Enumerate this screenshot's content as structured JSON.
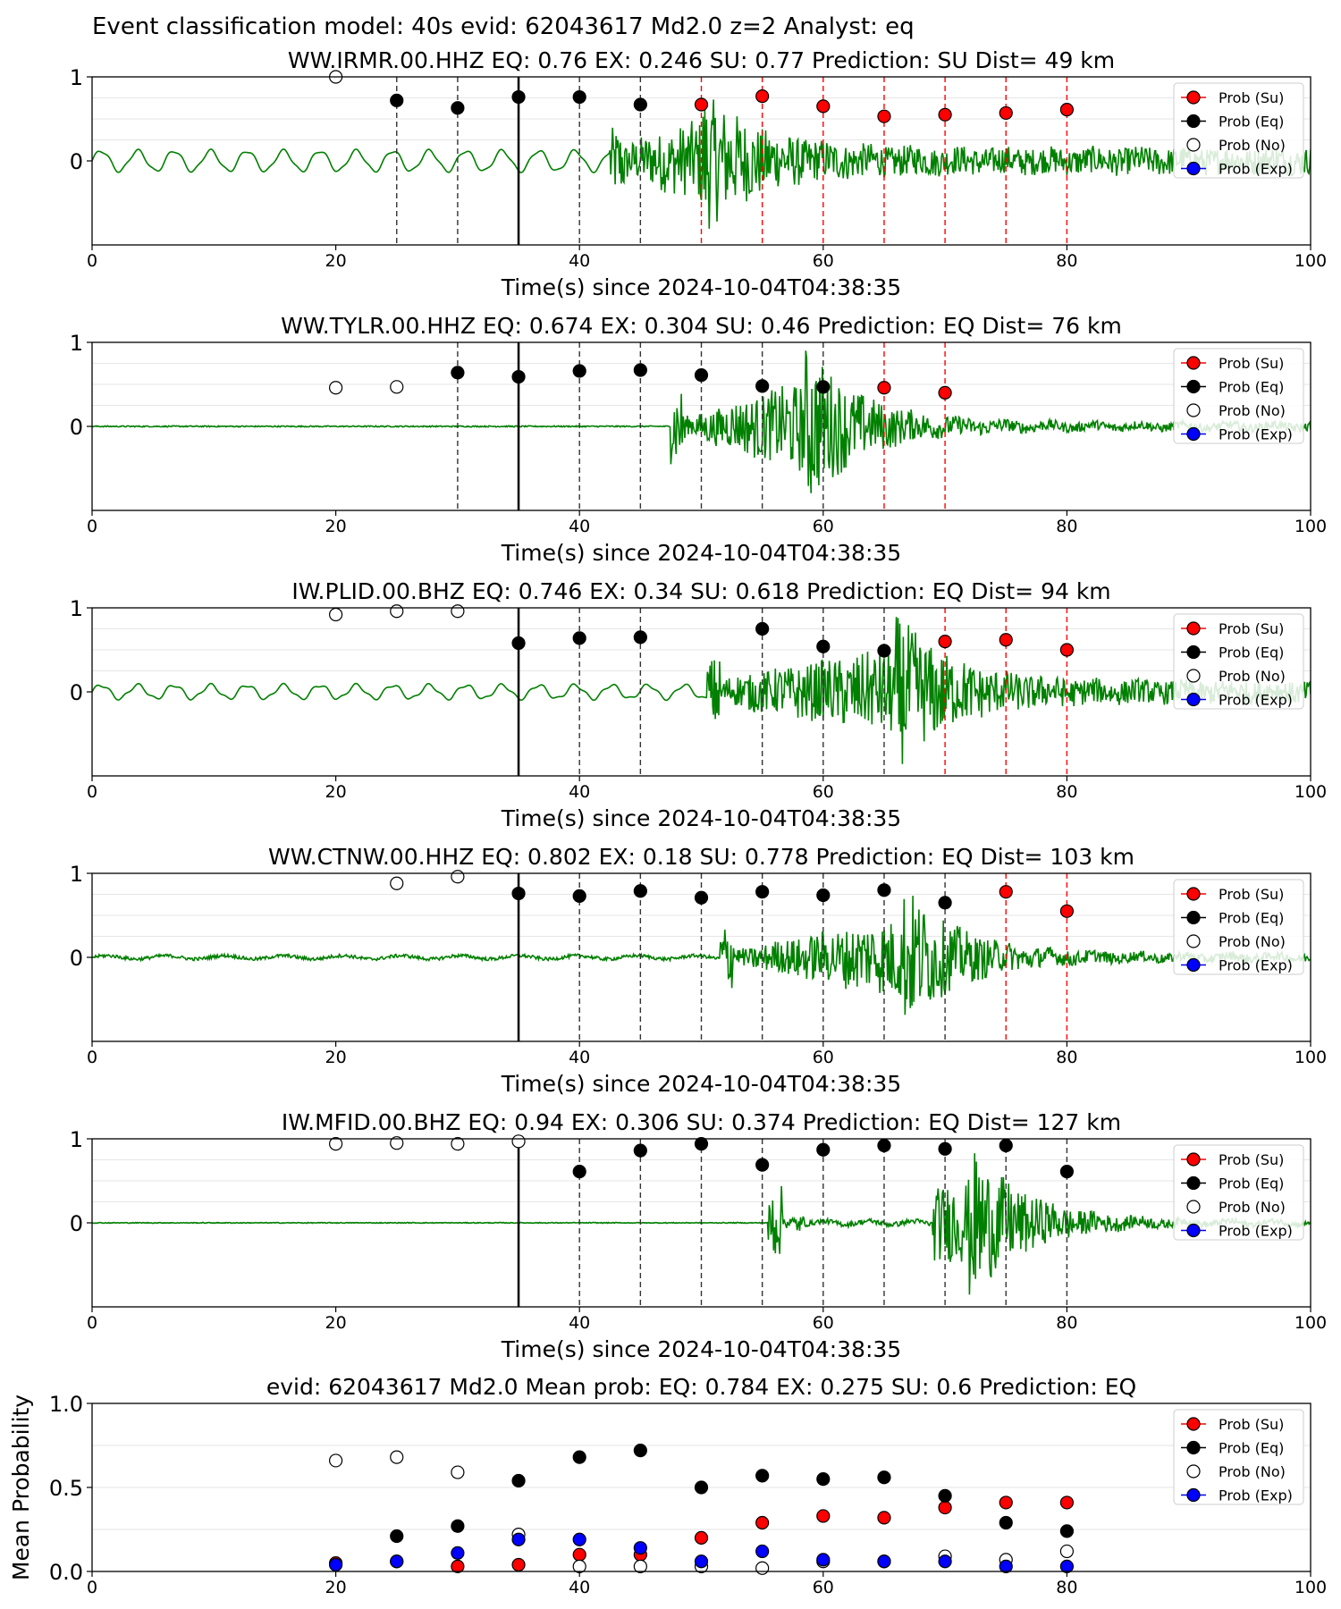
{
  "figure": {
    "suptitle": "Event classification model: 40s evid: 62043617 Md2.0 z=2 Analyst: eq"
  },
  "legend": [
    "Prob (Su)",
    "Prob (Eq)",
    "Prob (No)",
    "Prob (Exp)"
  ],
  "colors": {
    "su": "#ff0000",
    "eq": "#000000",
    "no": "#ffffff",
    "exp": "#0000ff",
    "waveform": "#008000",
    "eq_line": "#000000",
    "su_line": "#ff0000"
  },
  "chart_data": [
    {
      "type": "scatter",
      "title": "WW.IRMR.00.HHZ   EQ: 0.76  EX: 0.246  SU: 0.77   Prediction: SU    Dist= 49 km",
      "xlabel": "Time(s) since 2024-10-04T04:38:35",
      "xlim": [
        0,
        100
      ],
      "xticks": [
        "0",
        "20",
        "40",
        "60",
        "80",
        "100"
      ],
      "yticks": [
        "0",
        "1"
      ],
      "ylim": [
        -1,
        1
      ],
      "grid": true,
      "legend_position": "upper right",
      "reference_time": 35,
      "waveform": {
        "start": 0,
        "end": 100,
        "onset": 42.5,
        "peak": 50,
        "peak_amp": 0.9,
        "pre_amp": 0.12,
        "coda_amp": 0.16,
        "pre_style": "oscillating"
      },
      "vlines": [
        {
          "x": 25,
          "cls": "eq"
        },
        {
          "x": 30,
          "cls": "eq"
        },
        {
          "x": 40,
          "cls": "eq"
        },
        {
          "x": 45,
          "cls": "eq"
        },
        {
          "x": 50,
          "cls": "su"
        },
        {
          "x": 55,
          "cls": "su"
        },
        {
          "x": 60,
          "cls": "su"
        },
        {
          "x": 65,
          "cls": "su"
        },
        {
          "x": 70,
          "cls": "su"
        },
        {
          "x": 75,
          "cls": "su"
        },
        {
          "x": 80,
          "cls": "su"
        }
      ],
      "points": [
        {
          "x": 20,
          "y": 1.0,
          "cls": "no"
        },
        {
          "x": 25,
          "y": 0.72,
          "cls": "eq"
        },
        {
          "x": 30,
          "y": 0.63,
          "cls": "eq"
        },
        {
          "x": 35,
          "y": 0.76,
          "cls": "eq"
        },
        {
          "x": 40,
          "y": 0.76,
          "cls": "eq"
        },
        {
          "x": 45,
          "y": 0.67,
          "cls": "eq"
        },
        {
          "x": 50,
          "y": 0.67,
          "cls": "su"
        },
        {
          "x": 55,
          "y": 0.77,
          "cls": "su"
        },
        {
          "x": 60,
          "y": 0.65,
          "cls": "su"
        },
        {
          "x": 65,
          "y": 0.53,
          "cls": "su"
        },
        {
          "x": 70,
          "y": 0.55,
          "cls": "su"
        },
        {
          "x": 75,
          "y": 0.57,
          "cls": "su"
        },
        {
          "x": 80,
          "y": 0.61,
          "cls": "su"
        }
      ]
    },
    {
      "type": "scatter",
      "title": "WW.TYLR.00.HHZ   EQ: 0.674  EX: 0.304  SU: 0.46   Prediction: EQ    Dist= 76 km",
      "xlabel": "Time(s) since 2024-10-04T04:38:35",
      "xlim": [
        0,
        100
      ],
      "xticks": [
        "0",
        "20",
        "40",
        "60",
        "80",
        "100"
      ],
      "yticks": [
        "0",
        "1"
      ],
      "ylim": [
        -1,
        1
      ],
      "grid": true,
      "legend_position": "upper right",
      "reference_time": 35,
      "waveform": {
        "start": 0,
        "end": 100,
        "onset": 47.5,
        "peak": 58.5,
        "peak_amp": 1.0,
        "pre_amp": 0.015,
        "coda_amp": 0.05,
        "pre_style": "flat"
      },
      "vlines": [
        {
          "x": 30,
          "cls": "eq"
        },
        {
          "x": 40,
          "cls": "eq"
        },
        {
          "x": 45,
          "cls": "eq"
        },
        {
          "x": 50,
          "cls": "eq"
        },
        {
          "x": 55,
          "cls": "eq"
        },
        {
          "x": 60,
          "cls": "eq"
        },
        {
          "x": 65,
          "cls": "su"
        },
        {
          "x": 70,
          "cls": "su"
        }
      ],
      "points": [
        {
          "x": 20,
          "y": 0.46,
          "cls": "no"
        },
        {
          "x": 25,
          "y": 0.47,
          "cls": "no"
        },
        {
          "x": 30,
          "y": 0.64,
          "cls": "eq"
        },
        {
          "x": 35,
          "y": 0.59,
          "cls": "eq"
        },
        {
          "x": 40,
          "y": 0.66,
          "cls": "eq"
        },
        {
          "x": 45,
          "y": 0.67,
          "cls": "eq"
        },
        {
          "x": 50,
          "y": 0.61,
          "cls": "eq"
        },
        {
          "x": 55,
          "y": 0.48,
          "cls": "eq"
        },
        {
          "x": 60,
          "y": 0.47,
          "cls": "eq"
        },
        {
          "x": 65,
          "y": 0.46,
          "cls": "su"
        },
        {
          "x": 70,
          "y": 0.4,
          "cls": "su"
        }
      ]
    },
    {
      "type": "scatter",
      "title": "IW.PLID.00.BHZ   EQ: 0.746  EX: 0.34  SU: 0.618   Prediction: EQ    Dist= 94 km",
      "xlabel": "Time(s) since 2024-10-04T04:38:35",
      "xlim": [
        0,
        100
      ],
      "xticks": [
        "0",
        "20",
        "40",
        "60",
        "80",
        "100"
      ],
      "yticks": [
        "0",
        "1"
      ],
      "ylim": [
        -1,
        1
      ],
      "grid": true,
      "legend_position": "upper right",
      "reference_time": 35,
      "waveform": {
        "start": 0,
        "end": 100,
        "onset": 50.5,
        "peak": 66,
        "peak_amp": 0.95,
        "pre_amp": 0.08,
        "coda_amp": 0.13,
        "pre_style": "oscillating"
      },
      "vlines": [
        {
          "x": 40,
          "cls": "eq"
        },
        {
          "x": 45,
          "cls": "eq"
        },
        {
          "x": 55,
          "cls": "eq"
        },
        {
          "x": 60,
          "cls": "eq"
        },
        {
          "x": 65,
          "cls": "eq"
        },
        {
          "x": 70,
          "cls": "su"
        },
        {
          "x": 75,
          "cls": "su"
        },
        {
          "x": 80,
          "cls": "su"
        }
      ],
      "points": [
        {
          "x": 20,
          "y": 0.92,
          "cls": "no"
        },
        {
          "x": 25,
          "y": 0.96,
          "cls": "no"
        },
        {
          "x": 30,
          "y": 0.96,
          "cls": "no"
        },
        {
          "x": 35,
          "y": 0.58,
          "cls": "eq"
        },
        {
          "x": 40,
          "y": 0.64,
          "cls": "eq"
        },
        {
          "x": 45,
          "y": 0.65,
          "cls": "eq"
        },
        {
          "x": 55,
          "y": 0.75,
          "cls": "eq"
        },
        {
          "x": 60,
          "y": 0.54,
          "cls": "eq"
        },
        {
          "x": 65,
          "y": 0.49,
          "cls": "eq"
        },
        {
          "x": 70,
          "y": 0.6,
          "cls": "su"
        },
        {
          "x": 75,
          "y": 0.62,
          "cls": "su"
        },
        {
          "x": 80,
          "y": 0.5,
          "cls": "su"
        }
      ]
    },
    {
      "type": "scatter",
      "title": "WW.CTNW.00.HHZ   EQ: 0.802  EX: 0.18  SU: 0.778   Prediction: EQ    Dist= 103 km",
      "xlabel": "Time(s) since 2024-10-04T04:38:35",
      "xlim": [
        0,
        100
      ],
      "xticks": [
        "0",
        "20",
        "40",
        "60",
        "80",
        "100"
      ],
      "yticks": [
        "0",
        "1"
      ],
      "ylim": [
        -1,
        1
      ],
      "grid": true,
      "legend_position": "upper right",
      "reference_time": 35,
      "waveform": {
        "start": 0,
        "end": 100,
        "onset": 51.5,
        "peak": 66.5,
        "peak_amp": 0.9,
        "pre_amp": 0.04,
        "coda_amp": 0.05,
        "pre_style": "noisy"
      },
      "vlines": [
        {
          "x": 40,
          "cls": "eq"
        },
        {
          "x": 45,
          "cls": "eq"
        },
        {
          "x": 50,
          "cls": "eq"
        },
        {
          "x": 55,
          "cls": "eq"
        },
        {
          "x": 60,
          "cls": "eq"
        },
        {
          "x": 65,
          "cls": "eq"
        },
        {
          "x": 70,
          "cls": "eq"
        },
        {
          "x": 75,
          "cls": "su"
        },
        {
          "x": 80,
          "cls": "su"
        }
      ],
      "points": [
        {
          "x": 25,
          "y": 0.88,
          "cls": "no"
        },
        {
          "x": 30,
          "y": 0.96,
          "cls": "no"
        },
        {
          "x": 35,
          "y": 0.76,
          "cls": "eq"
        },
        {
          "x": 40,
          "y": 0.73,
          "cls": "eq"
        },
        {
          "x": 45,
          "y": 0.79,
          "cls": "eq"
        },
        {
          "x": 50,
          "y": 0.71,
          "cls": "eq"
        },
        {
          "x": 55,
          "y": 0.78,
          "cls": "eq"
        },
        {
          "x": 60,
          "y": 0.74,
          "cls": "eq"
        },
        {
          "x": 65,
          "y": 0.8,
          "cls": "eq"
        },
        {
          "x": 70,
          "y": 0.65,
          "cls": "eq"
        },
        {
          "x": 75,
          "y": 0.78,
          "cls": "su"
        },
        {
          "x": 80,
          "y": 0.55,
          "cls": "su"
        }
      ]
    },
    {
      "type": "scatter",
      "title": "IW.MFID.00.BHZ   EQ: 0.94  EX: 0.306  SU: 0.374   Prediction: EQ    Dist= 127 km",
      "xlabel": "Time(s) since 2024-10-04T04:38:35",
      "xlim": [
        0,
        100
      ],
      "xticks": [
        "0",
        "20",
        "40",
        "60",
        "80",
        "100"
      ],
      "yticks": [
        "0",
        "1"
      ],
      "ylim": [
        -1,
        1
      ],
      "grid": true,
      "legend_position": "upper right",
      "reference_time": 35,
      "waveform": {
        "start": 0,
        "end": 100,
        "onset": 55.5,
        "peak": 72,
        "peak_amp": 0.95,
        "pre_amp": 0.01,
        "coda_amp": 0.03,
        "pre_style": "flat",
        "double": true
      },
      "vlines": [
        {
          "x": 40,
          "cls": "eq"
        },
        {
          "x": 45,
          "cls": "eq"
        },
        {
          "x": 50,
          "cls": "eq"
        },
        {
          "x": 55,
          "cls": "eq"
        },
        {
          "x": 60,
          "cls": "eq"
        },
        {
          "x": 65,
          "cls": "eq"
        },
        {
          "x": 70,
          "cls": "eq"
        },
        {
          "x": 75,
          "cls": "eq"
        },
        {
          "x": 80,
          "cls": "eq"
        }
      ],
      "points": [
        {
          "x": 20,
          "y": 0.94,
          "cls": "no"
        },
        {
          "x": 25,
          "y": 0.95,
          "cls": "no"
        },
        {
          "x": 30,
          "y": 0.94,
          "cls": "no"
        },
        {
          "x": 35,
          "y": 0.97,
          "cls": "no"
        },
        {
          "x": 40,
          "y": 0.61,
          "cls": "eq"
        },
        {
          "x": 45,
          "y": 0.86,
          "cls": "eq"
        },
        {
          "x": 50,
          "y": 0.94,
          "cls": "eq"
        },
        {
          "x": 55,
          "y": 0.69,
          "cls": "eq"
        },
        {
          "x": 60,
          "y": 0.87,
          "cls": "eq"
        },
        {
          "x": 65,
          "y": 0.92,
          "cls": "eq"
        },
        {
          "x": 70,
          "y": 0.88,
          "cls": "eq"
        },
        {
          "x": 75,
          "y": 0.92,
          "cls": "eq"
        },
        {
          "x": 80,
          "y": 0.61,
          "cls": "eq"
        }
      ]
    },
    {
      "type": "scatter",
      "title": "evid: 62043617  Md2.0   Mean prob:   EQ: 0.784  EX: 0.275  SU: 0.6   Prediction: EQ",
      "xlabel": "",
      "ylabel": "Mean Probability",
      "xlim": [
        0,
        100
      ],
      "xticks": [
        "0",
        "20",
        "40",
        "60",
        "80",
        "100"
      ],
      "yticks": [
        "0.0",
        "0.5",
        "1.0"
      ],
      "ylim": [
        0,
        1
      ],
      "grid": true,
      "legend_position": "upper right",
      "series": [
        {
          "name": "Prob (Su)",
          "cls": "su",
          "x": [
            20,
            25,
            30,
            35,
            40,
            45,
            50,
            55,
            60,
            65,
            70,
            75,
            80
          ],
          "values": [
            0.05,
            0.06,
            0.03,
            0.04,
            0.1,
            0.1,
            0.2,
            0.29,
            0.33,
            0.32,
            0.38,
            0.41,
            0.41
          ]
        },
        {
          "name": "Prob (Eq)",
          "cls": "eq",
          "x": [
            25,
            30,
            35,
            40,
            45,
            50,
            55,
            60,
            65,
            70,
            75,
            80
          ],
          "values": [
            0.21,
            0.27,
            0.54,
            0.68,
            0.72,
            0.5,
            0.57,
            0.55,
            0.56,
            0.45,
            0.29,
            0.24
          ]
        },
        {
          "name": "Prob (No)",
          "cls": "no",
          "x": [
            20,
            25,
            30,
            35,
            40,
            45,
            50,
            55,
            60,
            65,
            70,
            75,
            80
          ],
          "values": [
            0.66,
            0.68,
            0.59,
            0.22,
            0.03,
            0.03,
            0.03,
            0.02,
            0.06,
            0.06,
            0.09,
            0.07,
            0.12
          ]
        },
        {
          "name": "Prob (Exp)",
          "cls": "exp",
          "x": [
            20,
            25,
            30,
            35,
            40,
            45,
            50,
            55,
            60,
            65,
            70,
            75,
            80
          ],
          "values": [
            0.04,
            0.06,
            0.11,
            0.19,
            0.19,
            0.14,
            0.06,
            0.12,
            0.07,
            0.06,
            0.06,
            0.03,
            0.03
          ]
        }
      ]
    }
  ]
}
